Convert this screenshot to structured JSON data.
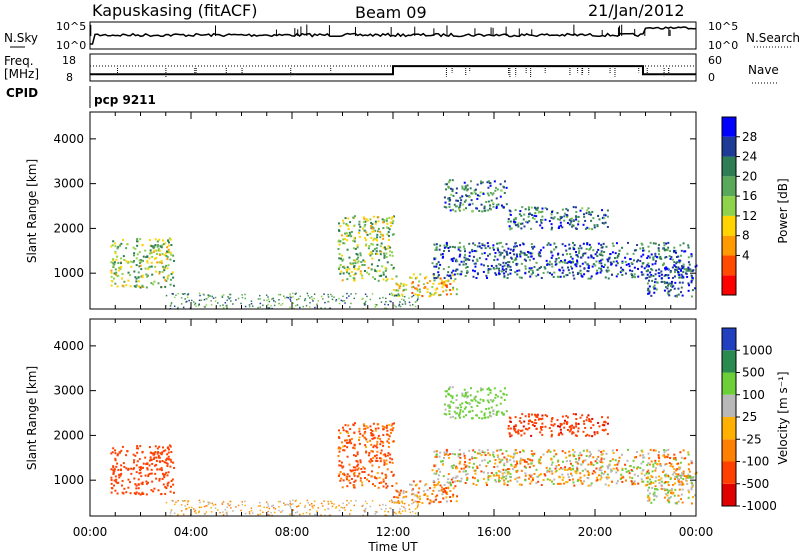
{
  "header": {
    "station": "Kapuskasing (fitACF)",
    "beam": "Beam 09",
    "date": "21/Jan/2012"
  },
  "noise_panel": {
    "left_label": "N.Sky",
    "right_label": "N.Search",
    "left_ticks": [
      "10^5",
      "10^0"
    ],
    "right_ticks": [
      "10^5",
      "10^0"
    ]
  },
  "freq_panel": {
    "left_label_1": "Freq.",
    "left_label_2": "[MHz]",
    "right_label": "Nave",
    "left_ticks": [
      "18",
      "8"
    ],
    "right_ticks": [
      "60",
      "0"
    ]
  },
  "cpid": {
    "label": "CPID",
    "program": "pcp 9211"
  },
  "power_panel": {
    "ylabel": "Slant Range [km]",
    "yticks": [
      "4000",
      "3000",
      "2000",
      "1000"
    ],
    "colorbar_label": "Power [dB]",
    "colorbar_ticks": [
      "28",
      "24",
      "20",
      "16",
      "12",
      "8",
      "4"
    ],
    "colors": [
      "#0000ff",
      "#1e3c96",
      "#2e7d55",
      "#5aa85a",
      "#8fd24b",
      "#ffd400",
      "#ff9a00",
      "#ff4a00",
      "#ff0000"
    ]
  },
  "velocity_panel": {
    "ylabel": "Slant Range [km]",
    "yticks": [
      "4000",
      "3000",
      "2000",
      "1000"
    ],
    "colorbar_label": "Velocity [m s⁻¹]",
    "colorbar_ticks": [
      "1000",
      "500",
      "100",
      "25",
      "-25",
      "-100",
      "-500",
      "-1000"
    ],
    "colors": [
      "#2040c0",
      "#2b8a50",
      "#6ccf3a",
      "#b8b8b8",
      "#ffb000",
      "#ff8000",
      "#ff4000",
      "#e00000"
    ]
  },
  "x_axis": {
    "ticks": [
      "00:00",
      "04:00",
      "08:00",
      "12:00",
      "16:00",
      "20:00",
      "00:00"
    ],
    "label": "Time UT"
  },
  "chart_data": {
    "type": "heatmap",
    "title": "Kapuskasing (fitACF)",
    "xlabel": "Time UT",
    "ylabel": "Slant Range [km]",
    "xlim": [
      0,
      24
    ],
    "ylim": [
      200,
      4600
    ],
    "series": [
      {
        "name": "Power [dB]",
        "range": [
          0,
          30
        ]
      },
      {
        "name": "Velocity [m s⁻¹]",
        "range": [
          -1000,
          1000
        ]
      }
    ],
    "echo_regions": [
      {
        "t0": 0.8,
        "t1": 3.3,
        "r0": 700,
        "r1": 1800,
        "p": 14,
        "v": -300
      },
      {
        "t0": 9.8,
        "t1": 12.0,
        "r0": 850,
        "r1": 2300,
        "p": 14,
        "v": -150
      },
      {
        "t0": 12.0,
        "t1": 14.5,
        "r0": 500,
        "r1": 1000,
        "p": 18,
        "v": -50
      },
      {
        "t0": 13.5,
        "t1": 23.8,
        "r0": 900,
        "r1": 1700,
        "p": 6,
        "v": 10
      },
      {
        "t0": 14.0,
        "t1": 16.5,
        "r0": 2400,
        "r1": 3100,
        "p": 8,
        "v": 200
      },
      {
        "t0": 16.5,
        "t1": 20.5,
        "r0": 2000,
        "r1": 2500,
        "p": 8,
        "v": -400
      },
      {
        "t0": 22.0,
        "t1": 24.0,
        "r0": 500,
        "r1": 1200,
        "p": 6,
        "v": 50
      }
    ],
    "freq_step": [
      {
        "t0": 0,
        "t1": 12.0,
        "mhz": 10.5
      },
      {
        "t0": 12.0,
        "t1": 21.9,
        "mhz": 13.5
      },
      {
        "t0": 21.9,
        "t1": 24.0,
        "mhz": 10.5
      }
    ]
  }
}
